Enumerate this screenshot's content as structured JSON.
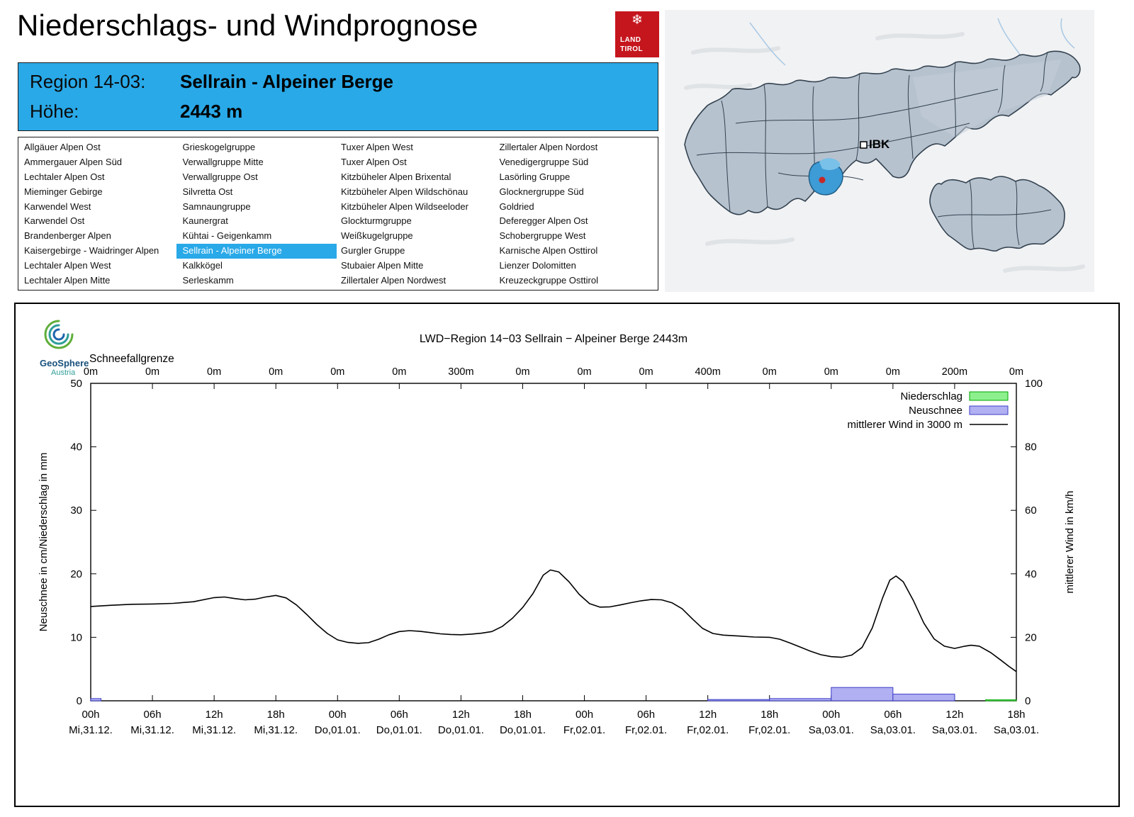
{
  "header": {
    "title": "Niederschlags- und Windprognose",
    "logo": {
      "snowflake": "❄",
      "line1": "LAND",
      "line2": "TIROL"
    }
  },
  "region_info": {
    "region_label": "Region 14-03:",
    "region_value": "Sellrain - Alpeiner Berge",
    "altitude_label": "Höhe:",
    "altitude_value": "2443 m"
  },
  "map": {
    "marker_label": "IBK"
  },
  "brand": {
    "name": "GeoSphere",
    "country": "Austria"
  },
  "region_list": {
    "selected": "Sellrain - Alpeiner Berge",
    "columns": [
      [
        "Allgäuer Alpen Ost",
        "Ammergauer Alpen Süd",
        "Lechtaler Alpen Ost",
        "Mieminger Gebirge",
        "Karwendel West",
        "Karwendel Ost",
        "Brandenberger Alpen",
        "Kaisergebirge - Waidringer Alpen",
        "Lechtaler Alpen West",
        "Lechtaler Alpen Mitte"
      ],
      [
        "Grieskogelgruppe",
        "Verwallgruppe Mitte",
        "Verwallgruppe Ost",
        "Silvretta Ost",
        "Samnaungruppe",
        "Kaunergrat",
        "Kühtai - Geigenkamm",
        "Sellrain - Alpeiner Berge",
        "Kalkkögel",
        "Serleskamm"
      ],
      [
        "Tuxer Alpen West",
        "Tuxer Alpen Ost",
        "Kitzbüheler Alpen Brixental",
        "Kitzbüheler Alpen Wildschönau",
        "Kitzbüheler Alpen Wildseeloder",
        "Glockturmgruppe",
        "Weißkugelgruppe",
        "Gurgler Gruppe",
        "Stubaier Alpen Mitte",
        "Zillertaler Alpen Nordwest"
      ],
      [
        "Zillertaler Alpen Nordost",
        "Venedigergruppe Süd",
        "Lasörling Gruppe",
        "Glocknergruppe Süd",
        "Goldried",
        "Deferegger Alpen Ost",
        "Schobergruppe West",
        "Karnische Alpen Osttirol",
        "Lienzer Dolomitten",
        "Kreuzeckgruppe Osttirol"
      ]
    ]
  },
  "chart_data": {
    "type": "line+bar",
    "title": "LWD−Region 14−03 Sellrain − Alpeiner Berge 2443m",
    "snowline_label": "Schneefallgrenze",
    "snowline_values": [
      "0m",
      "0m",
      "0m",
      "0m",
      "0m",
      "0m",
      "300m",
      "0m",
      "0m",
      "0m",
      "400m",
      "0m",
      "0m",
      "0m",
      "200m",
      "0m"
    ],
    "x_hours_range": [
      0,
      90
    ],
    "x_tick_step_hours": 6,
    "x_ticks": [
      {
        "time": "00h",
        "date": "Mi,31.12."
      },
      {
        "time": "06h",
        "date": "Mi,31.12."
      },
      {
        "time": "12h",
        "date": "Mi,31.12."
      },
      {
        "time": "18h",
        "date": "Mi,31.12."
      },
      {
        "time": "00h",
        "date": "Do,01.01."
      },
      {
        "time": "06h",
        "date": "Do,01.01."
      },
      {
        "time": "12h",
        "date": "Do,01.01."
      },
      {
        "time": "18h",
        "date": "Do,01.01."
      },
      {
        "time": "00h",
        "date": "Fr,02.01."
      },
      {
        "time": "06h",
        "date": "Fr,02.01."
      },
      {
        "time": "12h",
        "date": "Fr,02.01."
      },
      {
        "time": "18h",
        "date": "Fr,02.01."
      },
      {
        "time": "00h",
        "date": "Sa,03.01."
      },
      {
        "time": "06h",
        "date": "Sa,03.01."
      },
      {
        "time": "12h",
        "date": "Sa,03.01."
      },
      {
        "time": "18h",
        "date": "Sa,03.01."
      }
    ],
    "ylabel_left": "Neuschnee in cm/Niederschlag in mm",
    "ylabel_right": "mittlerer Wind in km/h",
    "ylim_left": [
      0,
      50
    ],
    "ylim_right": [
      0,
      100
    ],
    "yticks_left": [
      0,
      10,
      20,
      30,
      40,
      50
    ],
    "yticks_right": [
      0,
      20,
      40,
      60,
      80,
      100
    ],
    "colors": {
      "niederschlag_fill": "#8df08d",
      "niederschlag_stroke": "#00a400",
      "neuschnee_fill": "#b0b0f2",
      "neuschnee_stroke": "#3c3cc8",
      "wind_line": "#000000",
      "highlight_blue": "#29a9e8"
    },
    "legend": [
      {
        "label": "Niederschlag",
        "swatch": "box",
        "series": "niederschlag"
      },
      {
        "label": "Neuschnee",
        "swatch": "box",
        "series": "neuschnee"
      },
      {
        "label": "mittlerer Wind in 3000 m",
        "swatch": "line",
        "series": "wind"
      }
    ],
    "series": {
      "niederschlag": {
        "unit": "mm",
        "bars": [
          [
            87,
            90,
            0.15
          ]
        ]
      },
      "neuschnee": {
        "unit": "cm",
        "bars": [
          [
            0,
            1,
            0.35
          ],
          [
            60,
            66,
            0.2
          ],
          [
            66,
            72,
            0.35
          ],
          [
            72,
            78,
            2.1
          ],
          [
            78,
            84,
            1.05
          ]
        ]
      },
      "wind": {
        "unit": "km/h",
        "points": [
          [
            0,
            29.7
          ],
          [
            2,
            30.1
          ],
          [
            4,
            30.4
          ],
          [
            6,
            30.5
          ],
          [
            8,
            30.7
          ],
          [
            10,
            31.2
          ],
          [
            12,
            32.5
          ],
          [
            13,
            32.7
          ],
          [
            14,
            32.2
          ],
          [
            15,
            31.8
          ],
          [
            16,
            32.0
          ],
          [
            17,
            32.7
          ],
          [
            18,
            33.2
          ],
          [
            19,
            32.4
          ],
          [
            20,
            30.2
          ],
          [
            21,
            27.2
          ],
          [
            22,
            24.0
          ],
          [
            23,
            21.2
          ],
          [
            24,
            19.2
          ],
          [
            25,
            18.4
          ],
          [
            26,
            18.1
          ],
          [
            27,
            18.3
          ],
          [
            28,
            19.4
          ],
          [
            29,
            20.8
          ],
          [
            30,
            21.8
          ],
          [
            31,
            22.1
          ],
          [
            32,
            21.9
          ],
          [
            33,
            21.5
          ],
          [
            34,
            21.1
          ],
          [
            35,
            20.9
          ],
          [
            36,
            20.8
          ],
          [
            37,
            21.0
          ],
          [
            38,
            21.3
          ],
          [
            39,
            21.8
          ],
          [
            40,
            23.4
          ],
          [
            41,
            26.0
          ],
          [
            42,
            29.4
          ],
          [
            43,
            33.8
          ],
          [
            44,
            39.6
          ],
          [
            44.7,
            41.2
          ],
          [
            45.5,
            40.6
          ],
          [
            46.5,
            37.5
          ],
          [
            47.5,
            33.5
          ],
          [
            48.5,
            30.6
          ],
          [
            49.5,
            29.5
          ],
          [
            50.5,
            29.6
          ],
          [
            51.5,
            30.2
          ],
          [
            52.5,
            30.9
          ],
          [
            53.5,
            31.5
          ],
          [
            54.5,
            31.9
          ],
          [
            55.5,
            31.8
          ],
          [
            56.5,
            30.9
          ],
          [
            57.5,
            29.0
          ],
          [
            58.5,
            25.8
          ],
          [
            59.5,
            22.8
          ],
          [
            60.5,
            21.2
          ],
          [
            61.5,
            20.7
          ],
          [
            63,
            20.4
          ],
          [
            64.5,
            20.1
          ],
          [
            66,
            20.0
          ],
          [
            67,
            19.4
          ],
          [
            68,
            18.2
          ],
          [
            69,
            16.9
          ],
          [
            70,
            15.6
          ],
          [
            71,
            14.5
          ],
          [
            72,
            13.9
          ],
          [
            73,
            13.7
          ],
          [
            74,
            14.4
          ],
          [
            75,
            16.8
          ],
          [
            76,
            23.0
          ],
          [
            77,
            32.5
          ],
          [
            77.7,
            38.0
          ],
          [
            78.3,
            39.3
          ],
          [
            79,
            37.5
          ],
          [
            80,
            31.5
          ],
          [
            81,
            24.5
          ],
          [
            82,
            19.5
          ],
          [
            83,
            17.2
          ],
          [
            84,
            16.5
          ],
          [
            85,
            17.2
          ],
          [
            85.6,
            17.5
          ],
          [
            86.4,
            17.2
          ],
          [
            87.5,
            15.2
          ],
          [
            88.5,
            12.8
          ],
          [
            89.3,
            10.8
          ],
          [
            90,
            9.2
          ]
        ]
      }
    }
  }
}
